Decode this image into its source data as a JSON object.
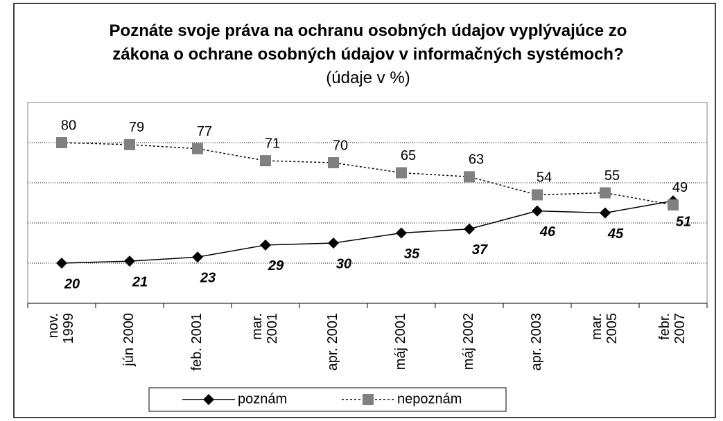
{
  "chart_data": {
    "type": "line",
    "title": "Poznáte svoje práva na ochranu osobných údajov vyplývajúce zo zákona o ochrane osobných údajov v informačných systémoch?",
    "subtitle": "(údaje v %)",
    "categories": [
      "nov.\n1999",
      "jún 2000",
      "feb. 2001",
      "mar.\n2001",
      "apr. 2001",
      "máj 2001",
      "máj 2002",
      "apr. 2003",
      "mar.\n2005",
      "febr.\n2007"
    ],
    "series": [
      {
        "name": "poznám",
        "color": "#000000",
        "values": [
          20,
          21,
          23,
          29,
          30,
          35,
          37,
          46,
          45,
          51
        ]
      },
      {
        "name": "nepoznám",
        "color": "#808080",
        "values": [
          80,
          79,
          77,
          71,
          70,
          65,
          63,
          54,
          55,
          49
        ]
      }
    ],
    "ylim": [
      0,
      100
    ],
    "yticks": [
      20,
      40,
      60,
      80
    ],
    "grid": true,
    "legend": "bottom"
  }
}
